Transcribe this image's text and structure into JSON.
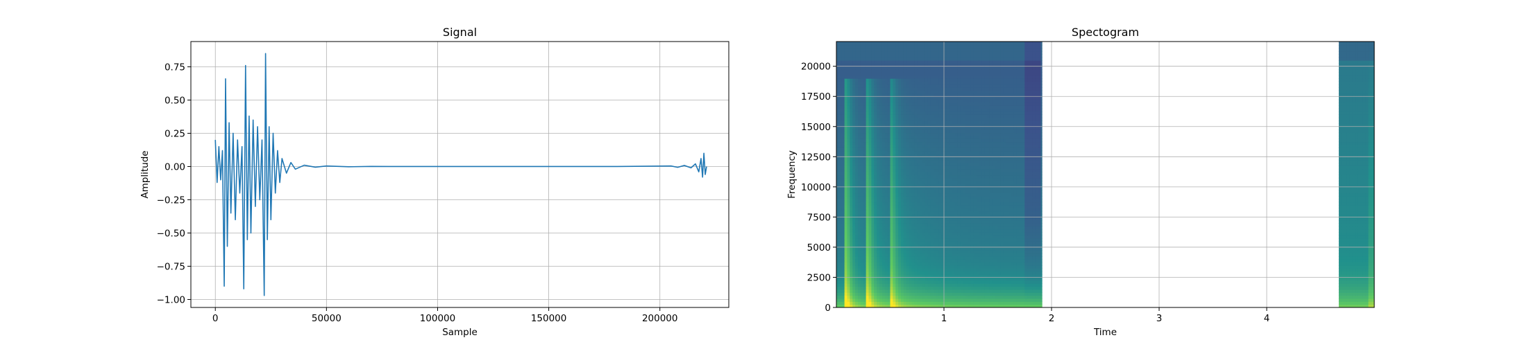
{
  "chart_data": [
    {
      "type": "line",
      "title": "Signal",
      "xlabel": "Sample",
      "ylabel": "Amplitude",
      "xlim": [
        -11000,
        231000
      ],
      "ylim": [
        -1.06,
        0.94
      ],
      "xticks": [
        0,
        50000,
        100000,
        150000,
        200000
      ],
      "xtick_labels": [
        "0",
        "50000",
        "100000",
        "150000",
        "200000"
      ],
      "yticks": [
        0.75,
        0.5,
        0.25,
        0.0,
        -0.25,
        -0.5,
        -0.75,
        -1.0
      ],
      "ytick_labels": [
        "0.75",
        "0.50",
        "0.25",
        "0.00",
        "−0.25",
        "−0.50",
        "−0.75",
        "−1.00"
      ],
      "grid": true,
      "color": "#1f77b4",
      "series": [
        {
          "x": [
            0,
            800,
            1600,
            2400,
            3200,
            4000,
            4600,
            5400,
            6200,
            7000,
            8000,
            9000,
            10000,
            11000,
            12000,
            12800,
            13600,
            14400,
            15200,
            16000,
            17000,
            18000,
            19000,
            20000,
            21000,
            22000,
            22600,
            23400,
            24200,
            25000,
            26000,
            27000,
            28000,
            29000,
            30000,
            32000,
            34000,
            36000,
            40000,
            45000,
            50000,
            60000,
            70000,
            78000,
            90000,
            120000,
            150000,
            180000,
            205000,
            208000,
            211000,
            214000,
            216000,
            217500,
            218500,
            219200,
            219800,
            220400,
            221000
          ],
          "y": [
            0.2,
            -0.12,
            0.15,
            -0.1,
            0.12,
            -0.9,
            0.66,
            -0.6,
            0.33,
            -0.35,
            0.25,
            -0.4,
            0.2,
            -0.2,
            0.15,
            -0.92,
            0.76,
            -0.55,
            0.38,
            -0.5,
            0.35,
            -0.3,
            0.3,
            -0.25,
            0.2,
            -0.97,
            0.85,
            -0.55,
            0.3,
            -0.4,
            0.25,
            -0.2,
            0.12,
            -0.12,
            0.06,
            -0.05,
            0.03,
            -0.02,
            0.01,
            -0.005,
            0.004,
            -0.002,
            0.001,
            0.0,
            0.0,
            0.0,
            0.0,
            0.0,
            0.004,
            -0.006,
            0.008,
            -0.01,
            0.02,
            -0.04,
            0.06,
            -0.08,
            0.1,
            -0.06,
            0.0
          ]
        }
      ]
    },
    {
      "type": "heatmap",
      "title": "Spectogram",
      "xlabel": "Time",
      "ylabel": "Frequency",
      "xlim": [
        0.0,
        5.0
      ],
      "ylim": [
        0,
        22050
      ],
      "xticks": [
        1,
        2,
        3,
        4
      ],
      "xtick_labels": [
        "1",
        "2",
        "3",
        "4"
      ],
      "yticks": [
        0,
        2500,
        5000,
        7500,
        10000,
        12500,
        15000,
        17500,
        20000
      ],
      "ytick_labels": [
        "0",
        "2500",
        "5000",
        "7500",
        "10000",
        "12500",
        "15000",
        "17500",
        "20000"
      ],
      "grid": true,
      "colormap": "viridis",
      "filled_time_ranges": [
        [
          0.0,
          1.91
        ],
        [
          4.67,
          5.0
        ]
      ],
      "onsets": [
        0.1,
        0.3,
        0.52
      ]
    }
  ]
}
